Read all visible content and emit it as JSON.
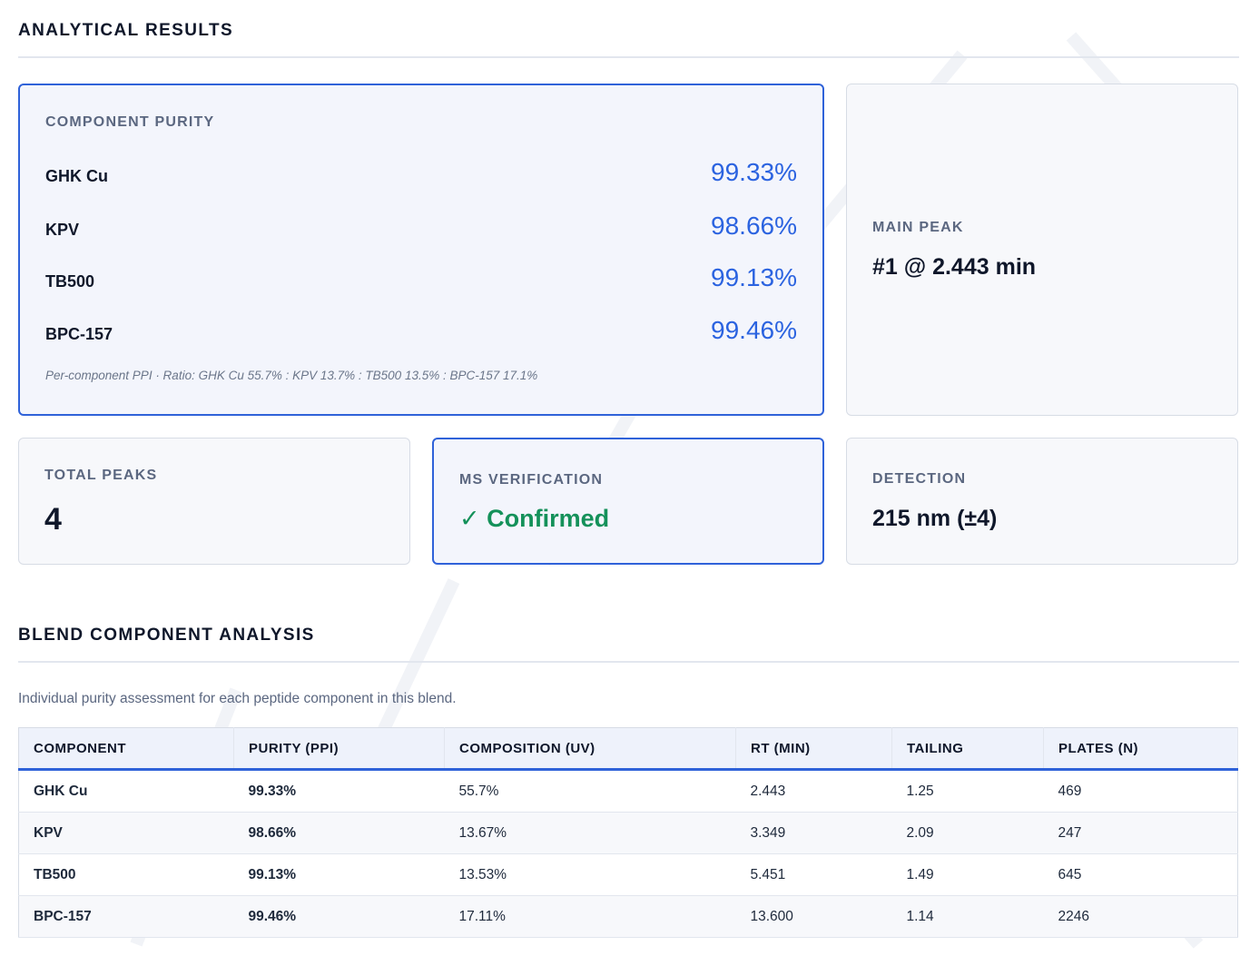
{
  "analytical": {
    "title": "ANALYTICAL RESULTS",
    "purity_card": {
      "label": "COMPONENT PURITY",
      "items": [
        {
          "name": "GHK Cu",
          "value": "99.33%"
        },
        {
          "name": "KPV",
          "value": "98.66%"
        },
        {
          "name": "TB500",
          "value": "99.13%"
        },
        {
          "name": "BPC-157",
          "value": "99.46%"
        }
      ],
      "note": "Per-component PPI · Ratio: GHK Cu 55.7% : KPV 13.7% : TB500 13.5% : BPC-157 17.1%"
    },
    "main_peak": {
      "label": "MAIN PEAK",
      "value": "#1 @ 2.443 min"
    },
    "total_peaks": {
      "label": "TOTAL PEAKS",
      "value": "4"
    },
    "ms_verification": {
      "label": "MS VERIFICATION",
      "value": "✓ Confirmed"
    },
    "detection": {
      "label": "DETECTION",
      "value": "215 nm (±4)"
    }
  },
  "blend": {
    "title": "BLEND COMPONENT ANALYSIS",
    "intro": "Individual purity assessment for each peptide component in this blend.",
    "columns": [
      "COMPONENT",
      "PURITY (PPI)",
      "COMPOSITION (UV)",
      "RT (MIN)",
      "TAILING",
      "PLATES (N)"
    ],
    "rows": [
      [
        "GHK Cu",
        "99.33%",
        "55.7%",
        "2.443",
        "1.25",
        "469"
      ],
      [
        "KPV",
        "98.66%",
        "13.67%",
        "3.349",
        "2.09",
        "247"
      ],
      [
        "TB500",
        "99.13%",
        "13.53%",
        "5.451",
        "1.49",
        "645"
      ],
      [
        "BPC-157",
        "99.46%",
        "17.11%",
        "13.600",
        "1.14",
        "2246"
      ]
    ]
  },
  "colors": {
    "accent": "#2f62d9",
    "purity_blue": "#2b63e0",
    "confirmed_green": "#14915a"
  }
}
